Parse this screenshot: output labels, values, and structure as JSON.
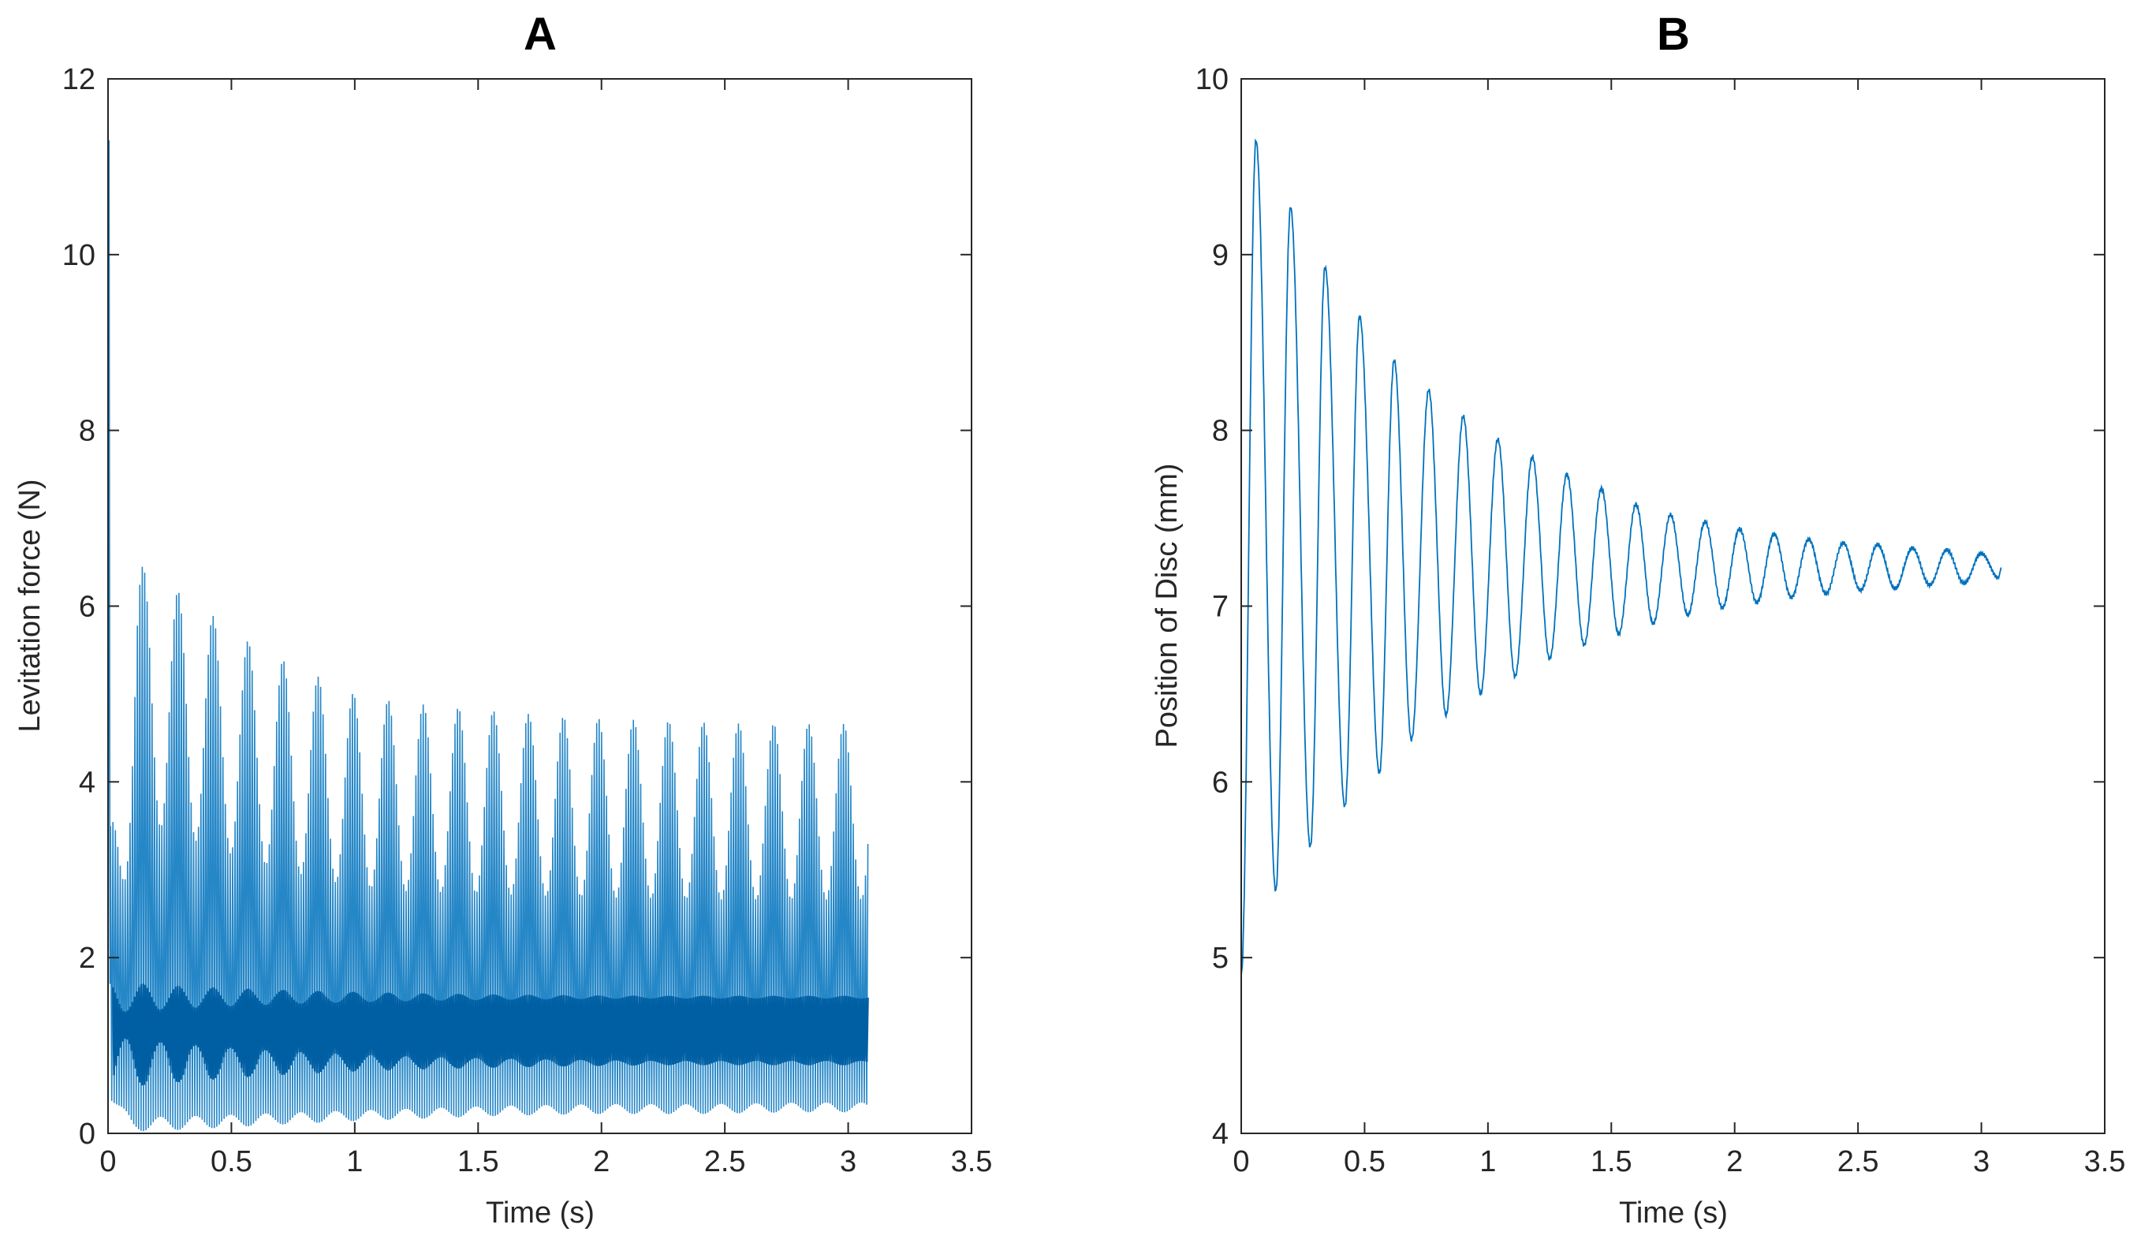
{
  "chart_data": [
    {
      "type": "line",
      "title": "A",
      "xlabel": "Time (s)",
      "ylabel": "Levitation force (N)",
      "xlim": [
        0,
        3.5
      ],
      "ylim": [
        0,
        12
      ],
      "xticks": [
        "0",
        "0.5",
        "1",
        "1.5",
        "2",
        "2.5",
        "3",
        "3.5"
      ],
      "yticks": [
        "0",
        "2",
        "4",
        "6",
        "8",
        "10",
        "12"
      ],
      "series": [
        {
          "name": "Levitation force",
          "color": "#0072BD",
          "description": "rapidly switching force signal",
          "t_end": 3.08,
          "initial_peak": 11.3,
          "dense_band": [
            0.8,
            1.55
          ],
          "upper_envelope": {
            "t": [
              0.0,
              0.12,
              0.27,
              0.42,
              0.57,
              0.7,
              0.85,
              1.0,
              1.2,
              1.4,
              1.6,
              1.8,
              2.0,
              2.2,
              2.4,
              2.6,
              2.8,
              3.08
            ],
            "v": [
              3.3,
              6.5,
              6.2,
              5.9,
              5.6,
              5.4,
              5.2,
              5.0,
              4.9,
              4.85,
              4.8,
              4.75,
              4.72,
              4.7,
              4.68,
              4.66,
              4.66,
              4.66
            ]
          },
          "lower_envelope": {
            "t": [
              0.0,
              0.1,
              0.3,
              0.5,
              0.7,
              1.0,
              1.3,
              1.6,
              2.0,
              2.4,
              2.8,
              3.08
            ],
            "v": [
              0.4,
              0.0,
              0.02,
              0.05,
              0.08,
              0.12,
              0.15,
              0.18,
              0.2,
              0.2,
              0.22,
              0.22
            ]
          }
        }
      ]
    },
    {
      "type": "line",
      "title": "B",
      "xlabel": "Time (s)",
      "ylabel": "Position of Disc (mm)",
      "xlim": [
        0,
        3.5
      ],
      "ylim": [
        4,
        10
      ],
      "xticks": [
        "0",
        "0.5",
        "1",
        "1.5",
        "2",
        "2.5",
        "3",
        "3.5"
      ],
      "yticks": [
        "4",
        "5",
        "6",
        "7",
        "8",
        "9",
        "10"
      ],
      "series": [
        {
          "name": "Disc position",
          "color": "#0072BD",
          "description": "damped oscillation of disc position",
          "t_end": 3.08,
          "start_value": 4.9,
          "equilibrium": 7.22,
          "peaks": {
            "t": [
              0.06,
              0.2,
              0.34,
              0.48,
              0.62,
              0.76,
              0.9,
              1.04,
              1.18,
              1.32,
              1.46,
              1.6,
              1.74,
              1.88,
              2.02,
              2.16,
              2.3,
              2.44,
              2.58,
              2.72,
              2.86,
              3.0
            ],
            "v": [
              9.65,
              9.27,
              8.93,
              8.65,
              8.4,
              8.23,
              8.08,
              7.95,
              7.85,
              7.75,
              7.67,
              7.58,
              7.52,
              7.48,
              7.44,
              7.41,
              7.38,
              7.36,
              7.35,
              7.33,
              7.32,
              7.3
            ]
          },
          "troughs": {
            "t": [
              0.14,
              0.28,
              0.42,
              0.56,
              0.69,
              0.83,
              0.97,
              1.11,
              1.25,
              1.39,
              1.53,
              1.67,
              1.81,
              1.95,
              2.09,
              2.23,
              2.37,
              2.51,
              2.65,
              2.79,
              2.93,
              3.07
            ],
            "v": [
              5.38,
              5.63,
              5.86,
              6.05,
              6.24,
              6.38,
              6.5,
              6.6,
              6.7,
              6.78,
              6.84,
              6.9,
              6.95,
              6.99,
              7.02,
              7.05,
              7.07,
              7.09,
              7.1,
              7.12,
              7.13,
              7.16
            ]
          }
        }
      ]
    }
  ]
}
